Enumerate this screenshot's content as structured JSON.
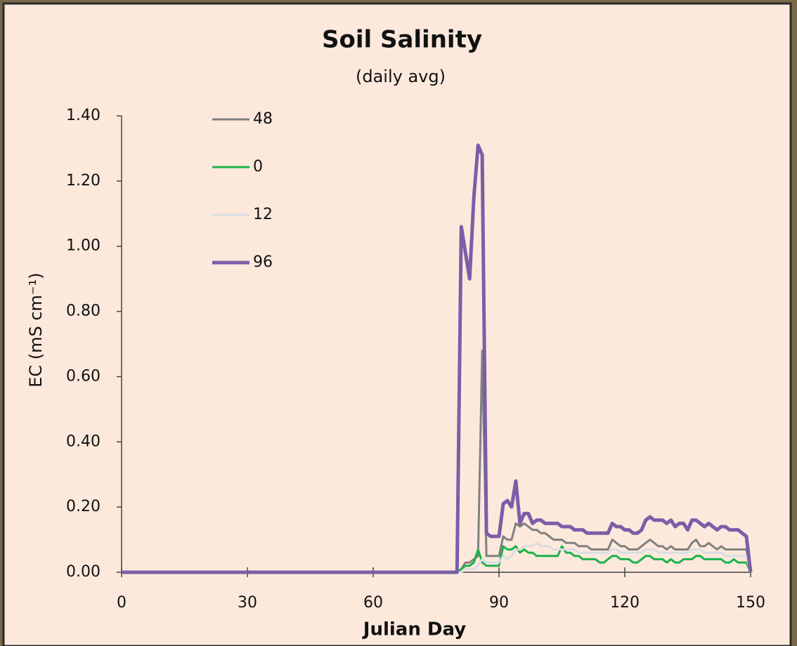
{
  "chart_data": {
    "type": "line",
    "title": "Soil Salinity",
    "subtitle": "(daily avg)",
    "xlabel": "Julian Day",
    "ylabel": "EC (mS cm⁻¹)",
    "x": [
      0,
      79,
      80,
      81,
      82,
      83,
      84,
      85,
      86,
      87,
      88,
      89,
      90,
      91,
      92,
      93,
      94,
      95,
      96,
      97,
      98,
      99,
      100,
      101,
      102,
      103,
      104,
      105,
      106,
      107,
      108,
      109,
      110,
      111,
      112,
      113,
      114,
      115,
      116,
      117,
      118,
      119,
      120,
      121,
      122,
      123,
      124,
      125,
      126,
      127,
      128,
      129,
      130,
      131,
      132,
      133,
      134,
      135,
      136,
      137,
      138,
      139,
      140,
      141,
      142,
      143,
      144,
      145,
      146,
      147,
      148,
      149,
      150
    ],
    "series": [
      {
        "name": "48",
        "color": "#808080",
        "width": 3,
        "values": [
          0,
          0,
          0,
          0.01,
          0.03,
          0.03,
          0.04,
          0.05,
          0.68,
          0.05,
          0.05,
          0.05,
          0.05,
          0.11,
          0.1,
          0.1,
          0.15,
          0.14,
          0.15,
          0.14,
          0.13,
          0.13,
          0.12,
          0.12,
          0.11,
          0.1,
          0.1,
          0.1,
          0.09,
          0.09,
          0.09,
          0.08,
          0.08,
          0.08,
          0.07,
          0.07,
          0.07,
          0.07,
          0.07,
          0.1,
          0.09,
          0.08,
          0.08,
          0.07,
          0.07,
          0.07,
          0.08,
          0.09,
          0.1,
          0.09,
          0.08,
          0.08,
          0.07,
          0.08,
          0.07,
          0.07,
          0.07,
          0.07,
          0.09,
          0.1,
          0.08,
          0.08,
          0.09,
          0.08,
          0.07,
          0.08,
          0.07,
          0.07,
          0.07,
          0.07,
          0.07,
          0.07,
          0
        ]
      },
      {
        "name": "0",
        "color": "#1db34a",
        "width": 3,
        "values": [
          0,
          0,
          0,
          0.01,
          0.02,
          0.02,
          0.03,
          0.07,
          0.03,
          0.02,
          0.02,
          0.02,
          0.02,
          0.08,
          0.07,
          0.07,
          0.08,
          0.06,
          0.07,
          0.06,
          0.06,
          0.05,
          0.05,
          0.05,
          0.05,
          0.05,
          0.05,
          0.08,
          0.06,
          0.06,
          0.05,
          0.05,
          0.04,
          0.04,
          0.04,
          0.04,
          0.03,
          0.03,
          0.04,
          0.05,
          0.05,
          0.04,
          0.04,
          0.04,
          0.03,
          0.03,
          0.04,
          0.05,
          0.05,
          0.04,
          0.04,
          0.04,
          0.03,
          0.04,
          0.03,
          0.03,
          0.04,
          0.04,
          0.04,
          0.05,
          0.05,
          0.04,
          0.04,
          0.04,
          0.04,
          0.04,
          0.03,
          0.03,
          0.04,
          0.03,
          0.03,
          0.03,
          0
        ]
      },
      {
        "name": "12",
        "color": "#d9dde3",
        "width": 3,
        "values": [
          0,
          0,
          0,
          0,
          0.01,
          0.01,
          0.01,
          0.02,
          0.04,
          0.03,
          0.03,
          0.03,
          0.03,
          0.05,
          0.04,
          0.05,
          0.07,
          0.07,
          0.08,
          0.08,
          0.08,
          0.09,
          0.08,
          0.08,
          0.08,
          0.07,
          0.07,
          0.07,
          0.07,
          0.07,
          0.07,
          0.06,
          0.06,
          0.06,
          0.06,
          0.06,
          0.06,
          0.06,
          0.06,
          0.07,
          0.07,
          0.06,
          0.06,
          0.06,
          0.06,
          0.06,
          0.06,
          0.07,
          0.07,
          0.07,
          0.06,
          0.06,
          0.06,
          0.06,
          0.06,
          0.06,
          0.06,
          0.06,
          0.07,
          0.07,
          0.07,
          0.06,
          0.06,
          0.06,
          0.06,
          0.06,
          0.05,
          0.05,
          0.05,
          0.05,
          0.05,
          0.05,
          0
        ]
      },
      {
        "name": "96",
        "color": "#7b5ea7",
        "width": 5,
        "values": [
          0,
          0,
          0,
          1.06,
          0.98,
          0.9,
          1.15,
          1.31,
          1.28,
          0.12,
          0.11,
          0.11,
          0.11,
          0.21,
          0.22,
          0.2,
          0.28,
          0.15,
          0.18,
          0.18,
          0.15,
          0.16,
          0.16,
          0.15,
          0.15,
          0.15,
          0.15,
          0.14,
          0.14,
          0.14,
          0.13,
          0.13,
          0.13,
          0.12,
          0.12,
          0.12,
          0.12,
          0.12,
          0.12,
          0.15,
          0.14,
          0.14,
          0.13,
          0.13,
          0.12,
          0.12,
          0.13,
          0.16,
          0.17,
          0.16,
          0.16,
          0.16,
          0.15,
          0.16,
          0.14,
          0.15,
          0.15,
          0.13,
          0.16,
          0.16,
          0.15,
          0.14,
          0.15,
          0.14,
          0.13,
          0.14,
          0.14,
          0.13,
          0.13,
          0.13,
          0.12,
          0.11,
          0
        ]
      }
    ],
    "xlim": [
      0,
      150
    ],
    "xticks": [
      0,
      30,
      60,
      90,
      120,
      150
    ],
    "ylim": [
      0,
      1.4
    ],
    "yticks": [
      {
        "value": 0,
        "label": "0.00"
      },
      {
        "value": 0.2,
        "label": "0.20"
      },
      {
        "value": 0.4,
        "label": "0.40"
      },
      {
        "value": 0.6,
        "label": "0.60"
      },
      {
        "value": 0.8,
        "label": "0.80"
      },
      {
        "value": 1.0,
        "label": "1.00"
      },
      {
        "value": 1.2,
        "label": "1.20"
      },
      {
        "value": 1.4,
        "label": "1.40"
      }
    ],
    "grid": false,
    "legend": "upper left"
  }
}
